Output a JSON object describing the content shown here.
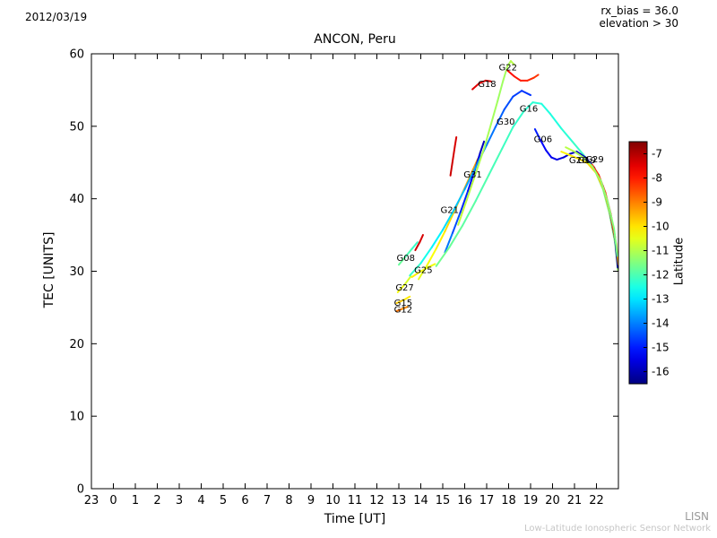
{
  "header": {
    "date": "2012/03/19",
    "rx_bias": "rx_bias = 36.0",
    "elevation": "elevation > 30"
  },
  "watermark": {
    "line1": "LISN",
    "line2": "Low-Latitude Ionospheric Sensor Network"
  },
  "chart_data": {
    "type": "line",
    "title": "ANCON, Peru",
    "xlabel": "Time [UT]",
    "ylabel": "TEC [UNITS]",
    "xlim": [
      -1,
      23
    ],
    "ylim": [
      0,
      60
    ],
    "xtick_values": [
      -1,
      0,
      1,
      2,
      3,
      4,
      5,
      6,
      7,
      8,
      9,
      10,
      11,
      12,
      13,
      14,
      15,
      16,
      17,
      18,
      19,
      20,
      21,
      22
    ],
    "xtick_labels": [
      "23",
      "0",
      "1",
      "2",
      "3",
      "4",
      "5",
      "6",
      "7",
      "8",
      "9",
      "10",
      "11",
      "12",
      "13",
      "14",
      "15",
      "16",
      "17",
      "18",
      "19",
      "20",
      "21",
      "22"
    ],
    "yticks": [
      0,
      10,
      20,
      30,
      40,
      50,
      60
    ],
    "grid": false,
    "colorbar": {
      "label": "Latitude",
      "top_value": -6.5,
      "bottom_value": -16.5,
      "ticks": [
        -7,
        -8,
        -9,
        -10,
        -11,
        -12,
        -13,
        -14,
        -15,
        -16
      ]
    },
    "series": [
      {
        "name": "G12",
        "label": "G12",
        "label_pos": [
          12.78,
          24.7
        ],
        "points": [
          [
            12.9,
            24.5,
            -8.8
          ],
          [
            13.15,
            24.8,
            -9.0
          ],
          [
            13.4,
            25.1,
            -9.2
          ]
        ]
      },
      {
        "name": "G15",
        "label": "G15",
        "label_pos": [
          12.78,
          25.6
        ],
        "points": [
          [
            12.9,
            25.6,
            -9.6
          ],
          [
            13.2,
            26.0,
            -9.9
          ],
          [
            13.5,
            26.5,
            -10.2
          ]
        ]
      },
      {
        "name": "G27",
        "label": "G27",
        "label_pos": [
          12.85,
          27.7
        ],
        "points": [
          [
            12.95,
            27.1,
            -10.2
          ],
          [
            13.25,
            28.1,
            -10.5
          ],
          [
            13.55,
            29.3,
            -10.8
          ]
        ]
      },
      {
        "name": "G08",
        "label": "G08",
        "label_pos": [
          12.9,
          31.8
        ],
        "points": [
          [
            13.0,
            30.9,
            -11.6
          ],
          [
            13.3,
            32.0,
            -11.9
          ],
          [
            13.6,
            33.1,
            -12.1
          ],
          [
            13.85,
            34.0,
            -12.3
          ]
        ]
      },
      {
        "name": "track-red-1",
        "label": "",
        "label_pos": null,
        "points": [
          [
            13.75,
            32.9,
            -7.2
          ],
          [
            13.95,
            34.0,
            -7.3
          ],
          [
            14.1,
            35.0,
            -7.4
          ]
        ]
      },
      {
        "name": "G25",
        "label": "G25",
        "label_pos": [
          13.7,
          30.1
        ],
        "points": [
          [
            13.6,
            29.2,
            -10.0
          ],
          [
            13.95,
            29.9,
            -10.2
          ],
          [
            14.3,
            30.5,
            -10.3
          ],
          [
            14.65,
            31.0,
            -10.5
          ]
        ]
      },
      {
        "name": "G21",
        "label": "G21",
        "label_pos": [
          14.9,
          38.4
        ],
        "points": [
          [
            13.9,
            28.9,
            -10.6
          ],
          [
            14.3,
            30.9,
            -10.4
          ],
          [
            14.7,
            33.1,
            -10.2
          ],
          [
            15.1,
            35.5,
            -10.0
          ],
          [
            15.5,
            38.1,
            -9.8
          ],
          [
            15.9,
            40.8,
            -9.6
          ],
          [
            16.3,
            43.5,
            -9.4
          ],
          [
            16.6,
            45.5,
            -9.2
          ]
        ]
      },
      {
        "name": "track-red-2",
        "label": "",
        "label_pos": null,
        "points": [
          [
            15.35,
            43.2,
            -7.2
          ],
          [
            15.45,
            45.2,
            -7.3
          ],
          [
            15.55,
            47.2,
            -7.35
          ],
          [
            15.62,
            48.5,
            -7.4
          ]
        ]
      },
      {
        "name": "G31",
        "label": "G31",
        "label_pos": [
          15.95,
          43.3
        ],
        "points": [
          [
            15.1,
            32.6,
            -13.9
          ],
          [
            15.45,
            35.3,
            -14.3
          ],
          [
            15.8,
            38.1,
            -14.7
          ],
          [
            16.15,
            41.1,
            -15.1
          ],
          [
            16.45,
            43.9,
            -15.5
          ],
          [
            16.7,
            46.3,
            -15.8
          ],
          [
            16.88,
            47.9,
            -16.0
          ]
        ]
      },
      {
        "name": "G30",
        "label": "G30",
        "label_pos": [
          17.45,
          50.6
        ],
        "points": [
          [
            13.5,
            29.4,
            -12.1
          ],
          [
            14.0,
            31.1,
            -12.4
          ],
          [
            14.5,
            33.3,
            -12.7
          ],
          [
            15.0,
            35.7,
            -13.0
          ],
          [
            15.5,
            38.4,
            -13.2
          ],
          [
            16.0,
            41.3,
            -13.5
          ],
          [
            16.5,
            44.4,
            -13.8
          ],
          [
            17.0,
            47.4,
            -14.0
          ],
          [
            17.4,
            49.9,
            -14.2
          ],
          [
            17.8,
            52.3,
            -14.4
          ],
          [
            18.2,
            54.1,
            -14.6
          ],
          [
            18.6,
            54.9,
            -14.7
          ],
          [
            19.0,
            54.3,
            -14.8
          ]
        ]
      },
      {
        "name": "G16",
        "label": "G16",
        "label_pos": [
          18.5,
          52.4
        ],
        "points": [
          [
            14.7,
            30.7,
            -11.6
          ],
          [
            15.3,
            33.3,
            -11.7
          ],
          [
            15.9,
            36.3,
            -11.8
          ],
          [
            16.5,
            39.7,
            -11.9
          ],
          [
            17.1,
            43.3,
            -12.0
          ],
          [
            17.7,
            46.9,
            -12.1
          ],
          [
            18.2,
            49.9,
            -12.2
          ],
          [
            18.7,
            52.1,
            -12.3
          ],
          [
            19.1,
            53.3,
            -12.3
          ],
          [
            19.5,
            53.1,
            -12.4
          ],
          [
            19.9,
            51.7,
            -12.5
          ],
          [
            20.4,
            49.7,
            -12.4
          ],
          [
            20.9,
            47.9,
            -12.3
          ],
          [
            21.4,
            46.1,
            -12.1
          ],
          [
            21.9,
            44.1,
            -11.9
          ],
          [
            22.3,
            41.3,
            -11.7
          ],
          [
            22.6,
            37.9,
            -11.5
          ],
          [
            22.85,
            33.9,
            -11.3
          ],
          [
            22.97,
            30.2,
            -11.1
          ]
        ]
      },
      {
        "name": "G22",
        "label": "G22",
        "label_pos": [
          17.55,
          58.1
        ],
        "points": [
          [
            15.7,
            36.4,
            -10.8
          ],
          [
            16.1,
            39.9,
            -10.9
          ],
          [
            16.5,
            43.5,
            -11.0
          ],
          [
            16.9,
            47.1,
            -11.1
          ],
          [
            17.2,
            50.3,
            -11.1
          ],
          [
            17.5,
            53.5,
            -11.2
          ],
          [
            17.75,
            56.3,
            -11.2
          ],
          [
            17.95,
            58.3,
            -11.1
          ],
          [
            18.1,
            59.0,
            -11.0
          ],
          [
            18.25,
            58.5,
            -10.9
          ]
        ]
      },
      {
        "name": "G18",
        "label": "G18",
        "label_pos": [
          16.6,
          55.8
        ],
        "points": [
          [
            16.35,
            55.1,
            -7.5
          ],
          [
            16.65,
            55.9,
            -7.4
          ],
          [
            16.95,
            56.3,
            -7.3
          ],
          [
            17.2,
            56.2,
            -7.2
          ]
        ]
      },
      {
        "name": "track-red-3",
        "label": "",
        "label_pos": null,
        "points": [
          [
            17.95,
            57.7,
            -7.8
          ],
          [
            18.25,
            56.9,
            -7.9
          ],
          [
            18.55,
            56.3,
            -8.0
          ],
          [
            18.85,
            56.3,
            -8.1
          ],
          [
            19.15,
            56.7,
            -8.2
          ],
          [
            19.35,
            57.1,
            -8.3
          ]
        ]
      },
      {
        "name": "G06",
        "label": "G06",
        "label_pos": [
          19.15,
          48.2
        ],
        "points": [
          [
            19.2,
            49.6,
            -14.9
          ],
          [
            19.45,
            48.1,
            -15.1
          ],
          [
            19.7,
            46.7,
            -15.3
          ],
          [
            19.95,
            45.7,
            -15.4
          ],
          [
            20.2,
            45.4,
            -15.5
          ],
          [
            20.5,
            45.7,
            -15.6
          ],
          [
            20.8,
            46.2,
            -15.7
          ],
          [
            21.1,
            46.5,
            -15.8
          ],
          [
            21.5,
            45.7,
            -15.9
          ],
          [
            21.9,
            44.3,
            -16.0
          ],
          [
            22.3,
            41.7,
            -16.0
          ],
          [
            22.6,
            38.3,
            -16.0
          ],
          [
            22.85,
            34.3,
            -16.0
          ],
          [
            22.97,
            30.5,
            -16.0
          ]
        ]
      },
      {
        "name": "G29",
        "label": "G29",
        "label_pos": [
          21.5,
          45.4
        ],
        "points": [
          [
            20.4,
            46.5,
            -10.2
          ],
          [
            20.8,
            46.0,
            -10.1
          ],
          [
            21.2,
            45.5,
            -10.0
          ],
          [
            21.6,
            44.9,
            -9.9
          ],
          [
            22.0,
            43.5,
            -9.8
          ],
          [
            22.35,
            41.1,
            -9.7
          ],
          [
            22.65,
            37.7,
            -9.6
          ],
          [
            22.9,
            33.7,
            -9.5
          ],
          [
            23.0,
            30.9,
            -9.4
          ]
        ]
      },
      {
        "name": "G26",
        "label": "G26",
        "label_pos": [
          20.75,
          45.3
        ],
        "points": [
          [
            21.8,
            44.7,
            -8.2
          ],
          [
            22.1,
            43.3,
            -8.1
          ],
          [
            22.4,
            40.9,
            -8.0
          ],
          [
            22.65,
            37.9,
            -7.9
          ],
          [
            22.85,
            34.7,
            -7.8
          ]
        ]
      },
      {
        "name": "G19",
        "label": "G19",
        "label_pos": [
          21.15,
          45.3
        ],
        "points": [
          [
            20.6,
            47.1,
            -10.9
          ],
          [
            21.0,
            46.5,
            -11.0
          ],
          [
            21.4,
            45.7,
            -11.1
          ],
          [
            21.8,
            44.5,
            -11.2
          ],
          [
            22.2,
            42.5,
            -11.3
          ],
          [
            22.5,
            39.7,
            -11.4
          ],
          [
            22.8,
            35.9,
            -11.5
          ],
          [
            22.95,
            32.1,
            -11.6
          ]
        ]
      }
    ]
  }
}
